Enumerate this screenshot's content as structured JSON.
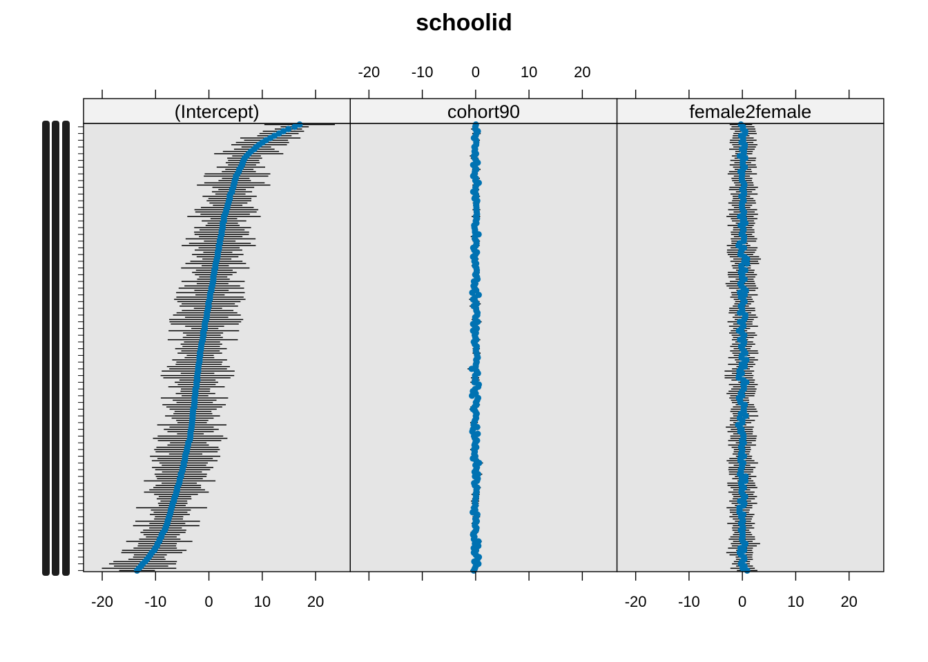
{
  "title": "schoolid",
  "colors": {
    "point": "#0072B2",
    "errorbar": "#000000",
    "panel_bg": "#E5E5E5",
    "strip_bg": "#F2F2F2"
  },
  "chart_data": {
    "type": "dotplot",
    "title": "schoolid",
    "grouping_label": "schoolid",
    "n_groups": 200,
    "xlim": [
      -23.5,
      26.5
    ],
    "x_ticks": [
      -20,
      -10,
      0,
      10,
      20
    ],
    "tick_labels": [
      "-20",
      "-10",
      "0",
      "10",
      "20"
    ],
    "panels": [
      {
        "name": "(Intercept)",
        "ticks_bottom": true,
        "ticks_top": false,
        "sorted_estimate_profile": [
          [
            0,
            -13.5
          ],
          [
            0.02,
            -12
          ],
          [
            0.05,
            -10
          ],
          [
            0.1,
            -8
          ],
          [
            0.2,
            -5.5
          ],
          [
            0.3,
            -3.5
          ],
          [
            0.4,
            -2.5
          ],
          [
            0.5,
            -1.5
          ],
          [
            0.6,
            0
          ],
          [
            0.7,
            1.5
          ],
          [
            0.8,
            3
          ],
          [
            0.88,
            5
          ],
          [
            0.93,
            7
          ],
          [
            0.96,
            10
          ],
          [
            0.985,
            14
          ],
          [
            1,
            17
          ]
        ],
        "interval_halfwidth_range": [
          2.5,
          7
        ]
      },
      {
        "name": "cohort90",
        "ticks_bottom": false,
        "ticks_top": true,
        "estimate_center": 0,
        "estimate_spread": 0.8,
        "interval_halfwidth_range": [
          0.3,
          0.8
        ]
      },
      {
        "name": "female2female",
        "ticks_bottom": true,
        "ticks_top": false,
        "estimate_center": 0,
        "estimate_spread": 1.0,
        "interval_halfwidth_range": [
          1.5,
          2.8
        ]
      }
    ]
  }
}
